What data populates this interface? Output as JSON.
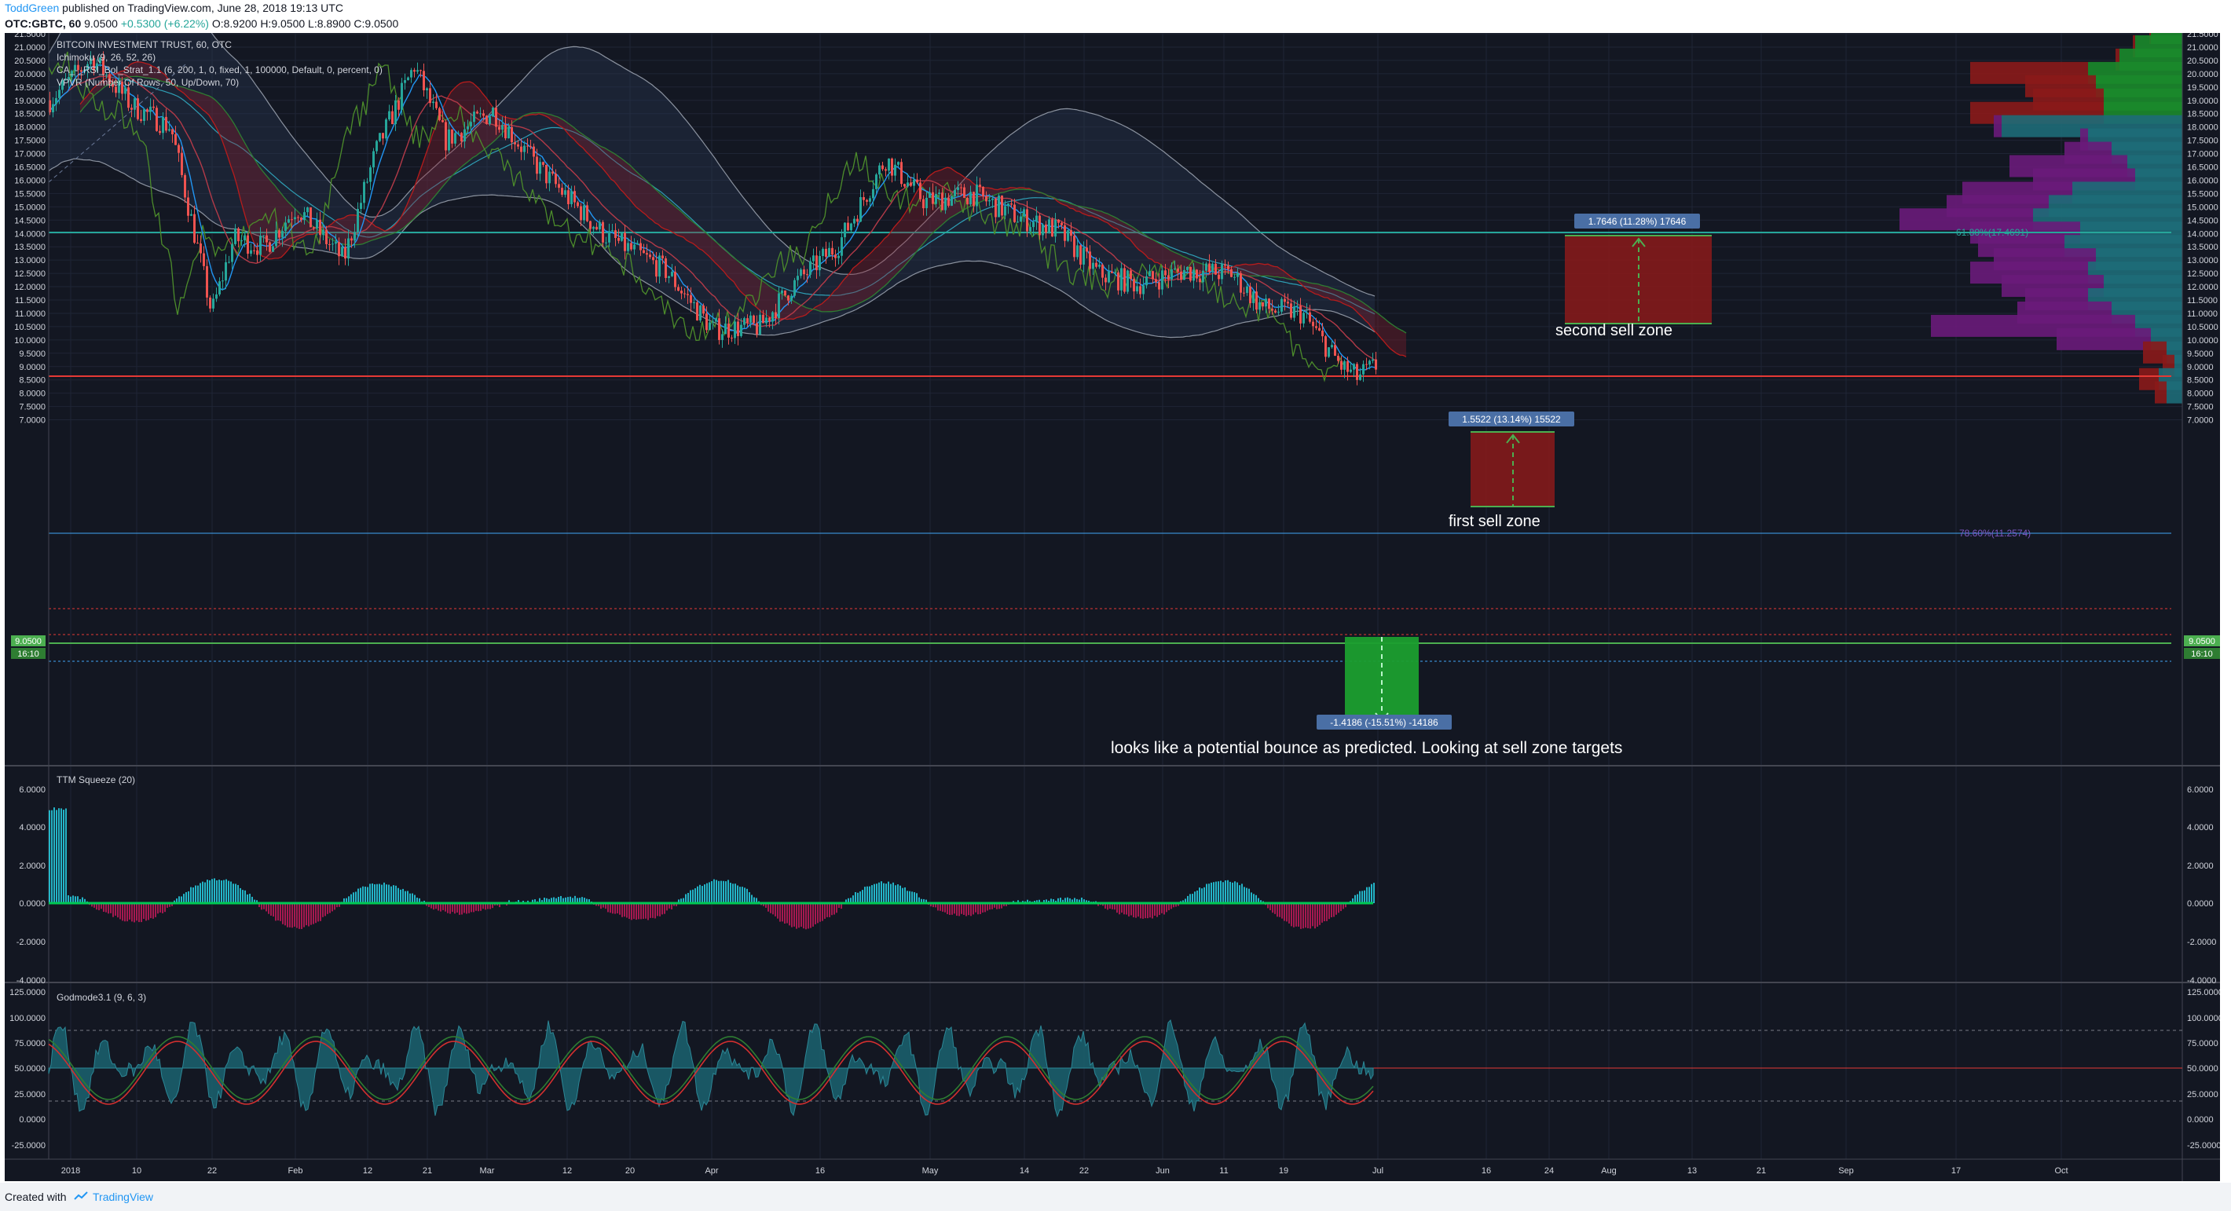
{
  "header": {
    "author": "ToddGreen",
    "published": "published on TradingView.com, June 28, 2018 19:13 UTC",
    "symbol": "OTC:GBTC, 60",
    "last": "9.0500",
    "change": "+0.5300 (+6.22%)",
    "ohlc": "O:8.9200 H:9.0500 L:8.8900 C:9.0500"
  },
  "main_pane": {
    "legend": [
      "BITCOIN INVESTMENT TRUST, 60, OTC",
      "Ichimoku (9, 26, 52, 26)",
      "CA_-_RSI_Bol_Strat_1.1 (6, 200, 1, 0, fixed, 1, 100000, Default, 0, percent, 0)",
      "VPVR (Number Of Rows, 50, Up/Down, 70)"
    ],
    "price_axis": [
      "21.5000",
      "21.0000",
      "20.5000",
      "20.0000",
      "19.5000",
      "19.0000",
      "18.5000",
      "18.0000",
      "17.5000",
      "17.0000",
      "16.5000",
      "16.0000",
      "15.5000",
      "15.0000",
      "14.5000",
      "14.0000",
      "13.5000",
      "13.0000",
      "12.5000",
      "12.0000",
      "11.5000",
      "11.0000",
      "10.5000",
      "10.0000",
      "9.5000",
      "9.0000",
      "8.5000",
      "8.0000",
      "7.5000",
      "7.0000"
    ],
    "price_badge_last": "9.0500",
    "price_badge_time": "16:10",
    "fib_618": "61.80%(17.4691)",
    "fib_786": "78.60%(11.2574)",
    "measure_second": "1.7646 (11.28%) 17646",
    "measure_first": "1.5522 (13.14%) 15522",
    "measure_down": "-1.4186 (-15.51%) -14186",
    "zone_second": "second sell zone",
    "zone_first": "first sell zone",
    "annotation": "looks like a potential bounce as predicted. Looking at sell zone targets"
  },
  "squeeze_pane": {
    "legend": "TTM Squeeze (20)",
    "axis": [
      "6.0000",
      "4.0000",
      "2.0000",
      "0.0000",
      "-2.0000",
      "-4.0000"
    ]
  },
  "godmode_pane": {
    "legend": "Godmode3.1 (9, 6, 3)",
    "axis": [
      "125.0000",
      "100.0000",
      "75.0000",
      "50.0000",
      "25.0000",
      "0.0000",
      "-25.0000"
    ]
  },
  "time_axis": [
    "2018",
    "10",
    "22",
    "Feb",
    "12",
    "21",
    "Mar",
    "12",
    "20",
    "Apr",
    "16",
    "May",
    "14",
    "22",
    "Jun",
    "11",
    "19",
    "Jul",
    "16",
    "24",
    "Aug",
    "13",
    "21",
    "Sep",
    "17",
    "Oct"
  ],
  "footer": {
    "created_with": "Created with",
    "brand": "TradingView"
  },
  "colors": {
    "background": "#131722",
    "bull": "#26a69a",
    "bear": "#ef5350",
    "purple": "#6a1b7a",
    "teal": "#1e6b78"
  }
}
